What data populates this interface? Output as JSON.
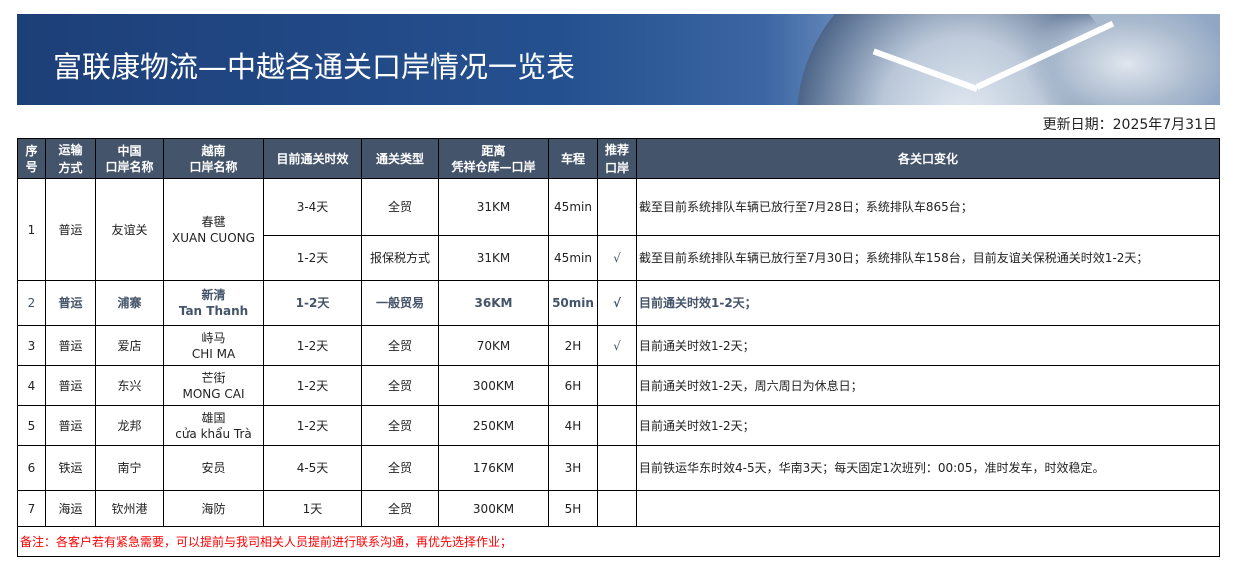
{
  "header": {
    "title": "富联康物流—中越各通关口岸情况一览表",
    "update_date": "更新日期：2025年7月31日"
  },
  "columns": [
    "序号",
    "运输方式",
    "中国口岸名称",
    "越南口岸名称",
    "目前通关时效",
    "通关类型",
    "距离 凭祥仓库—口岸",
    "车程",
    "推荐口岸",
    "各关口变化"
  ],
  "columns_lines": [
    [
      "序",
      "号"
    ],
    [
      "运输",
      "方式"
    ],
    [
      "中国",
      "口岸名称"
    ],
    [
      "越南",
      "口岸名称"
    ],
    [
      "目前通关时效"
    ],
    [
      "通关类型"
    ],
    [
      "距离",
      "凭祥仓库—口岸"
    ],
    [
      "车程"
    ],
    [
      "推荐",
      "口岸"
    ],
    [
      "各关口变化"
    ]
  ],
  "rows": [
    {
      "no": "1",
      "mode": "普运",
      "cn": "友谊关",
      "vn_cn": "春毽",
      "vn_en": "XUAN CUONG",
      "sub": [
        {
          "time": "3-4天",
          "type": "全贸",
          "dist": "31KM",
          "drive": "45min",
          "rec": "",
          "change": "截至目前系统排队车辆已放行至7月28日；系统排队车865台；"
        },
        {
          "time": "1-2天",
          "type": "报保税方式",
          "dist": "31KM",
          "drive": "45min",
          "rec": "√",
          "change": "截至目前系统排队车辆已放行至7月30日；系统排队车158台，目前友谊关保税通关时效1-2天；"
        }
      ]
    },
    {
      "no": "2",
      "mode": "普运",
      "cn": "浦寨",
      "vn_cn": "新清",
      "vn_en": "Tan Thanh",
      "time": "1-2天",
      "type": "一般贸易",
      "dist": "36KM",
      "drive": "50min",
      "rec": "√",
      "change": "目前通关时效1-2天；"
    },
    {
      "no": "3",
      "mode": "普运",
      "cn": "爱店",
      "vn_cn": "峙马",
      "vn_en": "CHI MA",
      "time": "1-2天",
      "type": "全贸",
      "dist": "70KM",
      "drive": "2H",
      "rec": "√",
      "change": "目前通关时效1-2天；"
    },
    {
      "no": "4",
      "mode": "普运",
      "cn": "东兴",
      "vn_cn": "芒街",
      "vn_en": "MONG CAI",
      "time": "1-2天",
      "type": "全贸",
      "dist": "300KM",
      "drive": "6H",
      "rec": "",
      "change": "目前通关时效1-2天，周六周日为休息日；"
    },
    {
      "no": "5",
      "mode": "普运",
      "cn": "龙邦",
      "vn_cn": "雄国",
      "vn_en": "cửa khẩu Trà",
      "time": "1-2天",
      "type": "全贸",
      "dist": "250KM",
      "drive": "4H",
      "rec": "",
      "change": "目前通关时效1-2天；"
    },
    {
      "no": "6",
      "mode": "铁运",
      "cn": "南宁",
      "vn_cn": "安员",
      "vn_en": "",
      "time": "4-5天",
      "type": "全贸",
      "dist": "176KM",
      "drive": "3H",
      "rec": "",
      "change": "目前铁运华东时效4-5天，华南3天；每天固定1次班列：00:05，准时发车，时效稳定。"
    },
    {
      "no": "7",
      "mode": "海运",
      "cn": "钦州港",
      "vn_cn": "海防",
      "vn_en": "",
      "time": "1天",
      "type": "全贸",
      "dist": "300KM",
      "drive": "5H",
      "rec": "",
      "change": ""
    }
  ],
  "note": "备注：各客户若有紧急需要，可以提前与我司相关人员提前进行联系沟通，再优先选择作业；",
  "colors": {
    "header_bg": "#44546a",
    "banner": "#1d3f78",
    "note": "#ff0000"
  }
}
